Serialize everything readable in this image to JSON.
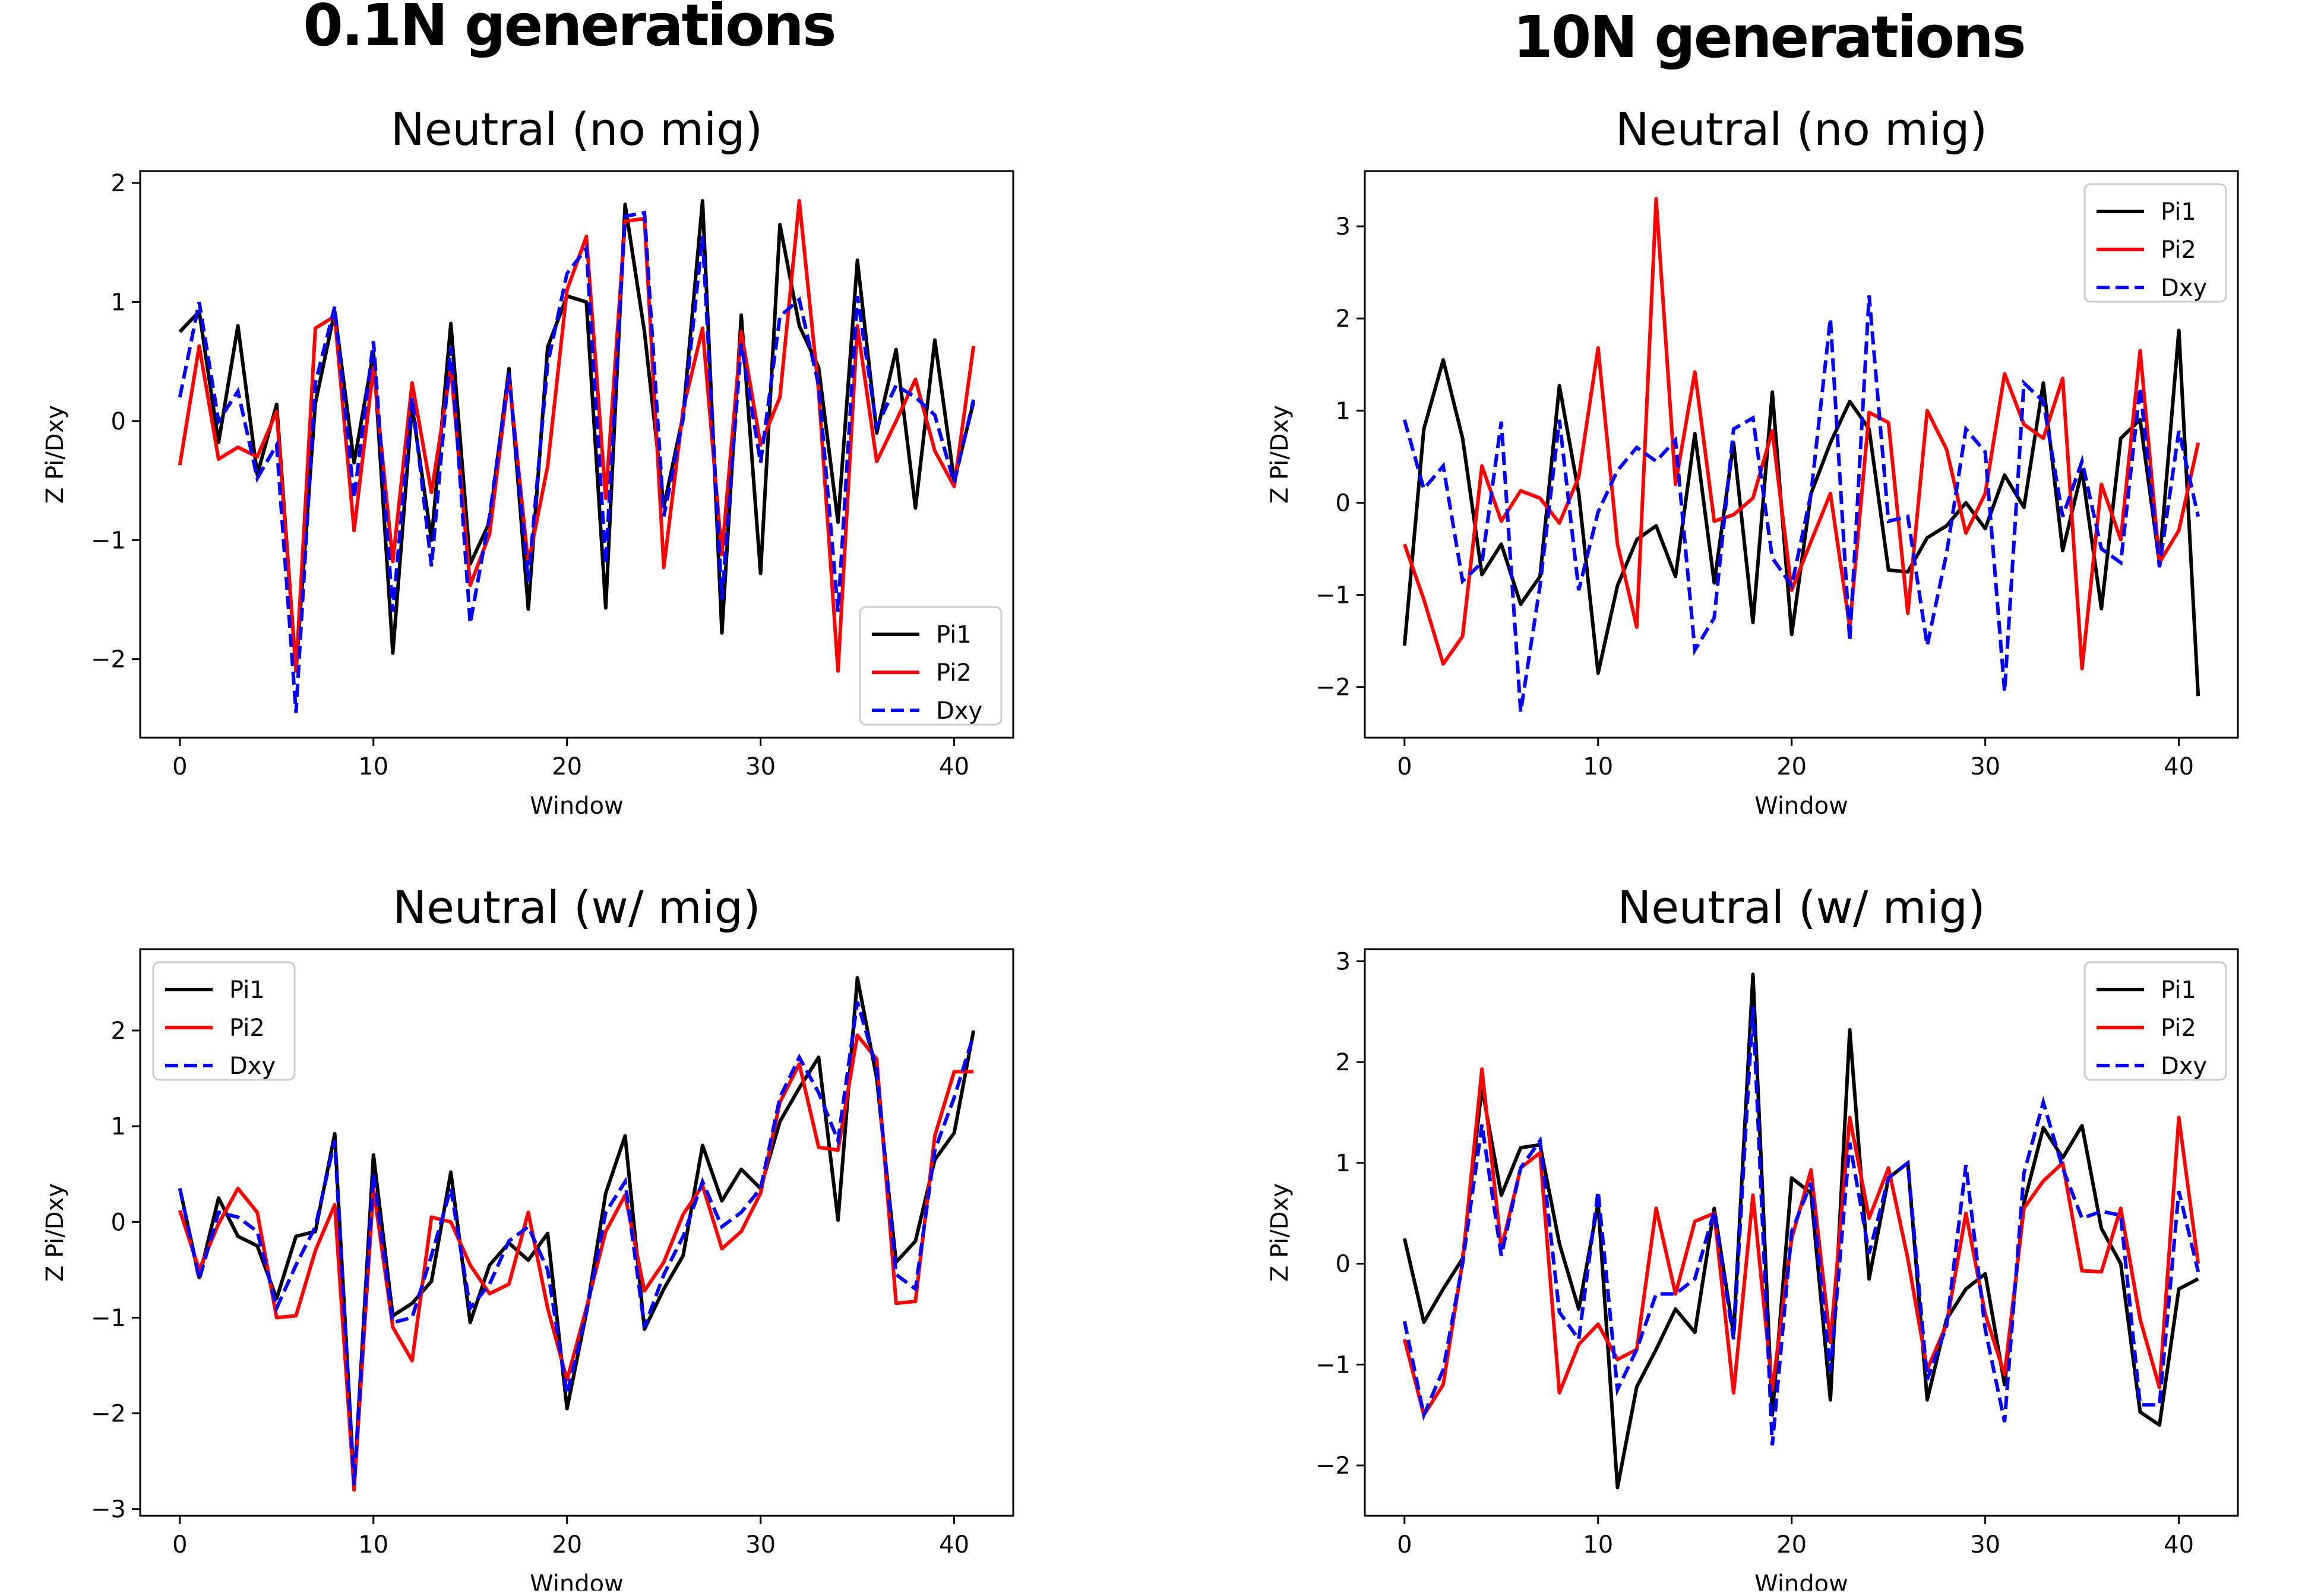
{
  "figure": {
    "column_titles": [
      "0.1N generations",
      "10N generations"
    ]
  },
  "chart_data": [
    {
      "type": "line",
      "title": "Neutral (no mig)",
      "xlabel": "Window",
      "ylabel": "Z Pi/Dxy",
      "xlim": [
        -2.05,
        43.05
      ],
      "ylim": [
        -2.66,
        2.1
      ],
      "xticks": [
        0,
        10,
        20,
        30,
        40
      ],
      "yticks": [
        -2,
        -1,
        0,
        1,
        2
      ],
      "legend_position": "lower-right",
      "x": [
        0,
        1,
        2,
        3,
        4,
        5,
        6,
        7,
        8,
        9,
        10,
        11,
        12,
        13,
        14,
        15,
        16,
        17,
        18,
        19,
        20,
        21,
        22,
        23,
        24,
        25,
        26,
        27,
        28,
        29,
        30,
        31,
        32,
        33,
        34,
        35,
        36,
        37,
        38,
        39,
        40,
        41
      ],
      "series": [
        {
          "name": "Pi1",
          "color": "#000000",
          "dash": "solid",
          "values": [
            0.75,
            0.92,
            -0.18,
            0.8,
            -0.45,
            0.14,
            -2.1,
            0.15,
            0.92,
            -0.35,
            0.58,
            -1.95,
            0.12,
            -1.0,
            0.82,
            -1.2,
            -0.85,
            0.44,
            -1.58,
            0.62,
            1.05,
            1.0,
            -1.57,
            1.82,
            0.75,
            -0.72,
            0.05,
            1.85,
            -1.78,
            0.89,
            -1.28,
            1.65,
            0.8,
            0.45,
            -0.85,
            1.35,
            -0.1,
            0.6,
            -0.73,
            0.68,
            -0.5,
            0.16
          ]
        },
        {
          "name": "Pi2",
          "color": "#ff0000",
          "dash": "solid",
          "values": [
            -0.37,
            0.63,
            -0.32,
            -0.22,
            -0.3,
            0.08,
            -2.1,
            0.78,
            0.88,
            -0.92,
            0.45,
            -1.18,
            0.32,
            -0.6,
            0.45,
            -1.38,
            -0.95,
            0.38,
            -1.2,
            -0.38,
            1.1,
            1.55,
            -0.65,
            1.68,
            1.7,
            -1.23,
            0.1,
            0.78,
            -1.12,
            0.75,
            -0.2,
            0.2,
            1.85,
            0.25,
            -2.1,
            0.8,
            -0.34,
            0.0,
            0.35,
            -0.25,
            -0.55,
            0.63
          ]
        },
        {
          "name": "Dxy",
          "color": "#0000ff",
          "dash": "dashed",
          "values": [
            0.2,
            1.0,
            0.0,
            0.25,
            -0.48,
            -0.2,
            -2.45,
            0.32,
            0.96,
            -0.65,
            0.67,
            -1.6,
            0.2,
            -1.22,
            0.62,
            -1.7,
            -0.8,
            0.4,
            -1.35,
            0.48,
            1.24,
            1.45,
            -1.2,
            1.72,
            1.75,
            -0.8,
            0.02,
            1.55,
            -1.5,
            0.65,
            -0.35,
            0.88,
            1.02,
            0.3,
            -1.6,
            1.05,
            -0.05,
            0.3,
            0.2,
            0.05,
            -0.52,
            0.18
          ]
        }
      ]
    },
    {
      "type": "line",
      "title": "Neutral (no mig)",
      "xlabel": "Window",
      "ylabel": "Z Pi/Dxy",
      "xlim": [
        -2.05,
        43.05
      ],
      "ylim": [
        -2.55,
        3.6
      ],
      "xticks": [
        0,
        10,
        20,
        30,
        40
      ],
      "yticks": [
        -2,
        -1,
        0,
        1,
        2,
        3
      ],
      "legend_position": "upper-right",
      "x": [
        0,
        1,
        2,
        3,
        4,
        5,
        6,
        7,
        8,
        9,
        10,
        11,
        12,
        13,
        14,
        15,
        16,
        17,
        18,
        19,
        20,
        21,
        22,
        23,
        24,
        25,
        26,
        27,
        28,
        29,
        30,
        31,
        32,
        33,
        34,
        35,
        36,
        37,
        38,
        39,
        40,
        41
      ],
      "series": [
        {
          "name": "Pi1",
          "color": "#000000",
          "dash": "solid",
          "values": [
            -1.55,
            0.8,
            1.55,
            0.7,
            -0.78,
            -0.45,
            -1.1,
            -0.8,
            1.27,
            0.1,
            -1.85,
            -0.9,
            -0.4,
            -0.25,
            -0.8,
            0.75,
            -0.87,
            0.65,
            -1.3,
            1.2,
            -1.43,
            0.1,
            0.65,
            1.1,
            0.8,
            -0.73,
            -0.75,
            -0.38,
            -0.25,
            0.0,
            -0.28,
            0.3,
            -0.05,
            1.3,
            -0.52,
            0.35,
            -1.15,
            0.7,
            0.9,
            -0.65,
            1.87,
            -2.1
          ]
        },
        {
          "name": "Pi2",
          "color": "#ff0000",
          "dash": "solid",
          "values": [
            -0.45,
            -1.05,
            -1.75,
            -1.45,
            0.4,
            -0.2,
            0.13,
            0.05,
            -0.22,
            0.28,
            1.68,
            -0.45,
            -1.35,
            3.3,
            0.2,
            1.42,
            -0.2,
            -0.13,
            0.05,
            0.78,
            -0.95,
            -0.42,
            0.1,
            -1.35,
            0.98,
            0.87,
            -1.2,
            1.0,
            0.58,
            -0.33,
            0.1,
            1.4,
            0.85,
            0.7,
            1.35,
            -1.8,
            0.2,
            -0.4,
            1.65,
            -0.65,
            -0.3,
            0.65
          ]
        },
        {
          "name": "Dxy",
          "color": "#0000ff",
          "dash": "dashed",
          "values": [
            0.9,
            0.15,
            0.4,
            -0.85,
            -0.65,
            0.88,
            -2.27,
            -0.9,
            0.9,
            -0.95,
            -0.1,
            0.35,
            0.6,
            0.45,
            0.68,
            -1.6,
            -1.25,
            0.8,
            0.92,
            -0.6,
            -0.9,
            0.1,
            2.0,
            -1.5,
            2.25,
            -0.2,
            -0.15,
            -1.55,
            -0.55,
            0.8,
            0.55,
            -2.05,
            1.3,
            1.1,
            -0.15,
            0.45,
            -0.5,
            -0.65,
            1.25,
            -0.7,
            0.78,
            -0.15
          ]
        }
      ]
    },
    {
      "type": "line",
      "title": "Neutral (w/  mig)",
      "xlabel": "Window",
      "ylabel": "Z Pi/Dxy",
      "xlim": [
        -2.05,
        43.05
      ],
      "ylim": [
        -3.07,
        2.85
      ],
      "xticks": [
        0,
        10,
        20,
        30,
        40
      ],
      "yticks": [
        -3,
        -2,
        -1,
        0,
        1,
        2
      ],
      "legend_position": "upper-left",
      "x": [
        0,
        1,
        2,
        3,
        4,
        5,
        6,
        7,
        8,
        9,
        10,
        11,
        12,
        13,
        14,
        15,
        16,
        17,
        18,
        19,
        20,
        21,
        22,
        23,
        24,
        25,
        26,
        27,
        28,
        29,
        30,
        31,
        32,
        33,
        34,
        35,
        36,
        37,
        38,
        39,
        40,
        41
      ],
      "series": [
        {
          "name": "Pi1",
          "color": "#000000",
          "dash": "solid",
          "values": [
            0.35,
            -0.58,
            0.25,
            -0.15,
            -0.25,
            -0.8,
            -0.15,
            -0.1,
            0.92,
            -2.75,
            0.7,
            -0.98,
            -0.85,
            -0.62,
            0.52,
            -1.05,
            -0.45,
            -0.22,
            -0.4,
            -0.12,
            -1.95,
            -0.95,
            0.3,
            0.9,
            -1.12,
            -0.7,
            -0.35,
            0.8,
            0.22,
            0.55,
            0.35,
            1.05,
            1.4,
            1.72,
            0.02,
            2.55,
            1.5,
            -0.42,
            -0.2,
            0.65,
            0.93,
            2.0
          ]
        },
        {
          "name": "Pi2",
          "color": "#ff0000",
          "dash": "solid",
          "values": [
            0.12,
            -0.5,
            -0.02,
            0.35,
            0.1,
            -1.0,
            -0.98,
            -0.3,
            0.18,
            -2.8,
            0.35,
            -1.1,
            -1.45,
            0.05,
            0.0,
            -0.45,
            -0.75,
            -0.65,
            0.1,
            -0.9,
            -1.65,
            -0.9,
            -0.1,
            0.28,
            -0.72,
            -0.42,
            0.08,
            0.38,
            -0.28,
            -0.1,
            0.3,
            1.25,
            1.65,
            0.78,
            0.75,
            1.95,
            1.7,
            -0.85,
            -0.83,
            0.9,
            1.57,
            1.57
          ]
        },
        {
          "name": "Dxy",
          "color": "#0000ff",
          "dash": "dashed",
          "values": [
            0.35,
            -0.6,
            0.1,
            0.05,
            -0.1,
            -0.9,
            -0.45,
            -0.05,
            0.85,
            -2.75,
            0.5,
            -1.05,
            -1.0,
            -0.35,
            0.35,
            -0.9,
            -0.65,
            -0.2,
            -0.05,
            -0.5,
            -1.8,
            -0.95,
            0.1,
            0.42,
            -1.1,
            -0.55,
            -0.15,
            0.42,
            -0.05,
            0.1,
            0.35,
            1.3,
            1.72,
            1.35,
            0.85,
            2.3,
            1.6,
            -0.55,
            -0.7,
            0.75,
            1.3,
            1.95
          ]
        }
      ]
    },
    {
      "type": "line",
      "title": "Neutral (w/  mig)",
      "xlabel": "Window",
      "ylabel": "Z Pi/Dxy",
      "xlim": [
        -2.05,
        43.05
      ],
      "ylim": [
        -2.5,
        3.12
      ],
      "xticks": [
        0,
        10,
        20,
        30,
        40
      ],
      "yticks": [
        -2,
        -1,
        0,
        1,
        2,
        3
      ],
      "legend_position": "upper-right",
      "x": [
        0,
        1,
        2,
        3,
        4,
        5,
        6,
        7,
        8,
        9,
        10,
        11,
        12,
        13,
        14,
        15,
        16,
        17,
        18,
        19,
        20,
        21,
        22,
        23,
        24,
        25,
        26,
        27,
        28,
        29,
        30,
        31,
        32,
        33,
        34,
        35,
        36,
        37,
        38,
        39,
        40,
        41
      ],
      "series": [
        {
          "name": "Pi1",
          "color": "#000000",
          "dash": "solid",
          "values": [
            0.25,
            -0.58,
            -0.25,
            0.05,
            1.75,
            0.68,
            1.15,
            1.18,
            0.2,
            -0.45,
            0.6,
            -2.22,
            -1.22,
            -0.85,
            -0.45,
            -0.68,
            0.55,
            -0.7,
            2.87,
            -1.5,
            0.85,
            0.7,
            -1.35,
            2.32,
            -0.15,
            0.85,
            1.0,
            -1.35,
            -0.55,
            -0.25,
            -0.1,
            -1.2,
            0.6,
            1.35,
            1.05,
            1.37,
            0.35,
            0.0,
            -1.47,
            -1.6,
            -0.25,
            -0.15
          ]
        },
        {
          "name": "Pi2",
          "color": "#ff0000",
          "dash": "solid",
          "values": [
            -0.75,
            -1.5,
            -1.2,
            0.02,
            1.93,
            0.15,
            0.95,
            1.1,
            -1.28,
            -0.8,
            -0.6,
            -0.95,
            -0.85,
            0.55,
            -0.3,
            0.42,
            0.5,
            -1.28,
            0.68,
            -1.25,
            0.25,
            0.93,
            -0.78,
            1.45,
            0.45,
            0.95,
            0.05,
            -1.05,
            -0.6,
            0.5,
            -0.5,
            -1.1,
            0.55,
            0.82,
            1.0,
            -0.07,
            -0.08,
            0.55,
            -0.55,
            -1.23,
            1.45,
            0.0
          ]
        },
        {
          "name": "Dxy",
          "color": "#0000ff",
          "dash": "dashed",
          "values": [
            -0.57,
            -1.5,
            -1.05,
            0.0,
            1.38,
            0.08,
            0.95,
            1.22,
            -0.48,
            -0.75,
            0.72,
            -1.25,
            -0.85,
            -0.3,
            -0.3,
            -0.15,
            0.52,
            -0.75,
            2.55,
            -1.8,
            0.32,
            0.8,
            -1.07,
            1.2,
            0.1,
            0.85,
            1.0,
            -1.15,
            -0.62,
            0.98,
            -0.65,
            -1.57,
            0.9,
            1.6,
            0.95,
            0.45,
            0.52,
            0.48,
            -1.4,
            -1.4,
            0.72,
            -0.08
          ]
        }
      ]
    }
  ]
}
